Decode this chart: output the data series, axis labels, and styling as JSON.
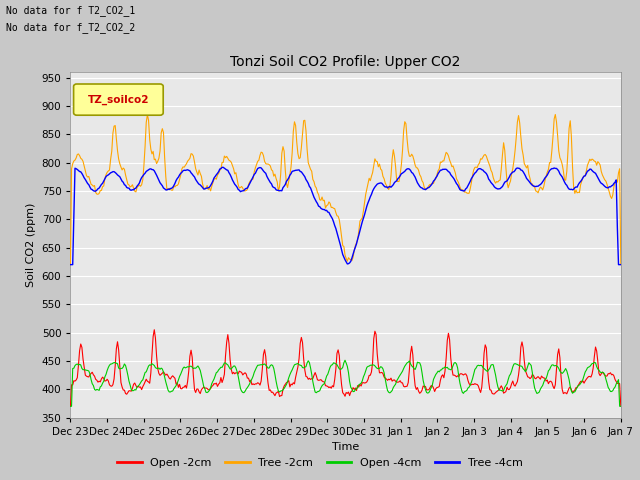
{
  "title": "Tonzi Soil CO2 Profile: Upper CO2",
  "ylabel": "Soil CO2 (ppm)",
  "xlabel": "Time",
  "note_line1": "No data for f T2_CO2_1",
  "note_line2": "No data for f_T2_CO2_2",
  "legend_label": "TZ_soilco2",
  "ylim": [
    350,
    960
  ],
  "yticks": [
    350,
    400,
    450,
    500,
    550,
    600,
    650,
    700,
    750,
    800,
    850,
    900,
    950
  ],
  "xtick_labels": [
    "Dec 23",
    "Dec 24",
    "Dec 25",
    "Dec 26",
    "Dec 27",
    "Dec 28",
    "Dec 29",
    "Dec 30",
    "Dec 31",
    "Jan 1",
    "Jan 2",
    "Jan 3",
    "Jan 4",
    "Jan 5",
    "Jan 6",
    "Jan 7"
  ],
  "fig_bg_color": "#c8c8c8",
  "plot_bg_color": "#e8e8e8",
  "grid_color": "#ffffff",
  "colors": {
    "open_2cm": "#ff0000",
    "tree_2cm": "#ffa500",
    "open_4cm": "#00cc00",
    "tree_4cm": "#0000ff"
  },
  "n_points": 480
}
